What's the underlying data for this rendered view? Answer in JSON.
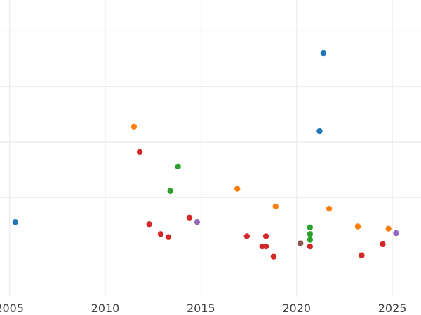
{
  "chart_data": {
    "type": "scatter",
    "title": "",
    "xlabel": "",
    "ylabel": "",
    "xlim": [
      2004.5,
      2026.5
    ],
    "ylim": [
      0.5,
      7.2
    ],
    "x_ticks": [
      {
        "value": 2005,
        "label": "2005"
      },
      {
        "value": 2010,
        "label": "2010"
      },
      {
        "value": 2015,
        "label": "2015"
      },
      {
        "value": 2020,
        "label": "2020"
      },
      {
        "value": 2025,
        "label": "2025"
      }
    ],
    "y_gridlines": [
      1.5,
      2.75,
      4.0,
      5.25,
      6.5
    ],
    "grid": true,
    "legend": "none",
    "colors": {
      "blue": "#1f77b4",
      "orange": "#ff7f0e",
      "green": "#2ca02c",
      "red": "#d62728",
      "purple": "#9467bd",
      "brown": "#8c564b"
    },
    "points": [
      {
        "x": 2005.3,
        "y": 2.2,
        "color": "blue"
      },
      {
        "x": 2021.4,
        "y": 6.0,
        "color": "blue"
      },
      {
        "x": 2021.2,
        "y": 4.25,
        "color": "blue"
      },
      {
        "x": 2011.5,
        "y": 4.35,
        "color": "orange"
      },
      {
        "x": 2016.9,
        "y": 2.95,
        "color": "orange"
      },
      {
        "x": 2018.9,
        "y": 2.55,
        "color": "orange"
      },
      {
        "x": 2021.7,
        "y": 2.5,
        "color": "orange"
      },
      {
        "x": 2023.2,
        "y": 2.1,
        "color": "orange"
      },
      {
        "x": 2024.8,
        "y": 2.05,
        "color": "orange"
      },
      {
        "x": 2013.8,
        "y": 3.45,
        "color": "green"
      },
      {
        "x": 2013.4,
        "y": 2.9,
        "color": "green"
      },
      {
        "x": 2020.7,
        "y": 2.08,
        "color": "green"
      },
      {
        "x": 2020.7,
        "y": 1.93,
        "color": "green"
      },
      {
        "x": 2020.7,
        "y": 1.8,
        "color": "green"
      },
      {
        "x": 2011.8,
        "y": 3.78,
        "color": "red"
      },
      {
        "x": 2012.3,
        "y": 2.15,
        "color": "red"
      },
      {
        "x": 2014.4,
        "y": 2.3,
        "color": "red"
      },
      {
        "x": 2012.9,
        "y": 1.93,
        "color": "red"
      },
      {
        "x": 2013.3,
        "y": 1.86,
        "color": "red"
      },
      {
        "x": 2017.4,
        "y": 1.88,
        "color": "red"
      },
      {
        "x": 2018.4,
        "y": 1.88,
        "color": "red"
      },
      {
        "x": 2018.2,
        "y": 1.65,
        "color": "red"
      },
      {
        "x": 2018.4,
        "y": 1.65,
        "color": "red"
      },
      {
        "x": 2018.8,
        "y": 1.42,
        "color": "red"
      },
      {
        "x": 2020.7,
        "y": 1.65,
        "color": "red"
      },
      {
        "x": 2023.4,
        "y": 1.45,
        "color": "red"
      },
      {
        "x": 2024.5,
        "y": 1.7,
        "color": "red"
      },
      {
        "x": 2014.8,
        "y": 2.2,
        "color": "purple"
      },
      {
        "x": 2025.2,
        "y": 1.95,
        "color": "purple"
      },
      {
        "x": 2020.2,
        "y": 1.72,
        "color": "brown"
      }
    ]
  }
}
